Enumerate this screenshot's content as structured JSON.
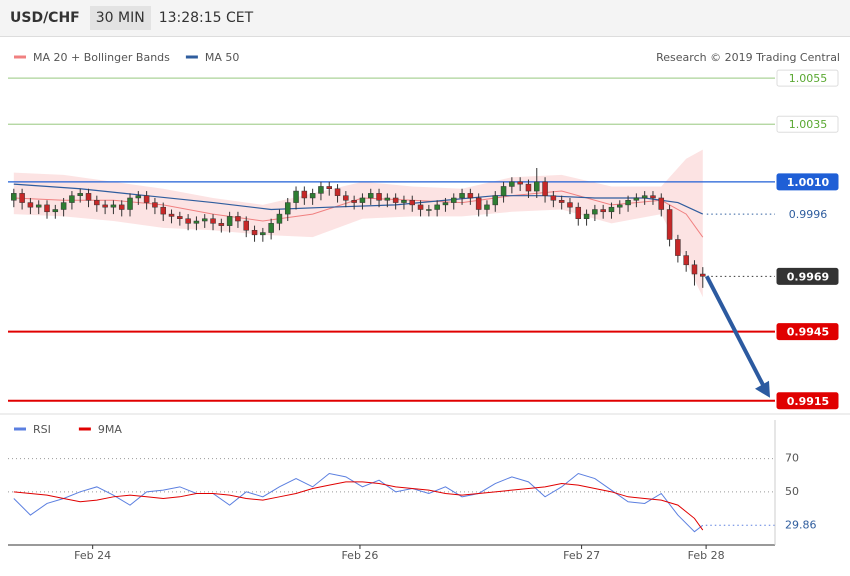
{
  "header": {
    "symbol": "USD/CHF",
    "interval": "30 MIN",
    "time": "13:28:15 CET"
  },
  "chart_data": [
    {
      "type": "candlestick",
      "legend": [
        {
          "name": "MA 20 + Bollinger Bands",
          "color": "#f08080"
        },
        {
          "name": "MA 50",
          "color": "#2f5d9e"
        }
      ],
      "credit": "Research © 2019 Trading Central",
      "xlim": [
        -0.7,
        91.7
      ],
      "ylim": [
        0.9911,
        1.0062
      ],
      "up_color": "#2e7d32",
      "down_color": "#c62828",
      "candles": {
        "open": [
          1.0002,
          1.0005,
          1.0001,
          0.9999,
          1.0,
          0.9997,
          0.9998,
          1.0001,
          1.0004,
          1.0005,
          1.0002,
          1.0,
          0.9999,
          1.0,
          0.9998,
          1.0003,
          1.0004,
          1.0001,
          0.9999,
          0.9996,
          0.9995,
          0.9994,
          0.9992,
          0.9993,
          0.9994,
          0.9992,
          0.9991,
          0.9995,
          0.9993,
          0.9989,
          0.9987,
          0.9988,
          0.9992,
          0.9996,
          1.0001,
          1.0006,
          1.0003,
          1.0005,
          1.0008,
          1.0007,
          1.0004,
          1.0002,
          1.0001,
          1.0003,
          1.0005,
          1.0002,
          1.0003,
          1.0001,
          1.0002,
          1.0,
          0.9998,
          0.9998,
          1.0,
          1.0001,
          1.0003,
          1.0005,
          1.0003,
          0.9998,
          1.0,
          1.0004,
          1.0008,
          1.001,
          1.0009,
          1.0006,
          1.001,
          1.0004,
          1.0002,
          1.0001,
          0.9999,
          0.9994,
          0.9996,
          0.9998,
          0.9997,
          0.9999,
          1.0,
          1.0002,
          1.0003,
          1.0004,
          1.0003,
          0.9998,
          0.9985,
          0.9978,
          0.9974,
          0.997
        ],
        "high": [
          1.0007,
          1.0007,
          1.0003,
          1.0002,
          1.0002,
          1.0,
          1.0003,
          1.0006,
          1.0007,
          1.0007,
          1.0004,
          1.0002,
          1.0002,
          1.0002,
          1.0005,
          1.0006,
          1.0006,
          1.0003,
          1.0001,
          0.9998,
          0.9997,
          0.9996,
          0.9995,
          0.9996,
          0.9996,
          0.9994,
          0.9997,
          0.9997,
          0.9995,
          0.9991,
          0.999,
          0.9994,
          0.9998,
          1.0003,
          1.0008,
          1.0008,
          1.0007,
          1.001,
          1.001,
          1.0009,
          1.0006,
          1.0004,
          1.0005,
          1.0007,
          1.0007,
          1.0005,
          1.0005,
          1.0004,
          1.0004,
          1.0002,
          1.0,
          1.0002,
          1.0003,
          1.0005,
          1.0007,
          1.0007,
          1.0005,
          1.0002,
          1.0006,
          1.001,
          1.0012,
          1.0012,
          1.0011,
          1.0016,
          1.0012,
          1.0006,
          1.0004,
          1.0003,
          1.0001,
          0.9998,
          1.0,
          1.0,
          1.0001,
          1.0002,
          1.0004,
          1.0005,
          1.0006,
          1.0006,
          1.0005,
          1.0,
          0.9987,
          0.998,
          0.9976,
          0.9973
        ],
        "low": [
          0.9999,
          0.9998,
          0.9996,
          0.9996,
          0.9994,
          0.9994,
          0.9995,
          0.9998,
          1.0001,
          0.9999,
          0.9997,
          0.9996,
          0.9996,
          0.9995,
          0.9995,
          1.0,
          0.9998,
          0.9996,
          0.9993,
          0.9992,
          0.9991,
          0.9989,
          0.9989,
          0.999,
          0.9989,
          0.9988,
          0.9988,
          0.999,
          0.9986,
          0.9984,
          0.9984,
          0.9985,
          0.9989,
          0.9993,
          0.9998,
          1.0,
          1.0,
          1.0002,
          1.0004,
          1.0001,
          0.9999,
          0.9998,
          0.9998,
          1.0,
          0.9999,
          0.9999,
          0.9998,
          0.9998,
          0.9997,
          0.9995,
          0.9995,
          0.9995,
          0.9997,
          0.9998,
          1.0,
          1.0,
          0.9995,
          0.9995,
          0.9997,
          1.0001,
          1.0005,
          1.0006,
          1.0003,
          1.0003,
          1.0001,
          0.9999,
          0.9998,
          0.9996,
          0.9991,
          0.9991,
          0.9993,
          0.9994,
          0.9994,
          0.9996,
          0.9997,
          0.9999,
          1.0,
          1.0,
          0.9995,
          0.9982,
          0.9975,
          0.9971,
          0.9965,
          0.9964
        ],
        "close": [
          1.0005,
          1.0001,
          0.9999,
          1.0,
          0.9997,
          0.9998,
          1.0001,
          1.0004,
          1.0005,
          1.0002,
          1.0,
          0.9999,
          1.0,
          0.9998,
          1.0003,
          1.0004,
          1.0001,
          0.9999,
          0.9996,
          0.9995,
          0.9994,
          0.9992,
          0.9993,
          0.9994,
          0.9992,
          0.9991,
          0.9995,
          0.9993,
          0.9989,
          0.9987,
          0.9988,
          0.9992,
          0.9996,
          1.0001,
          1.0006,
          1.0003,
          1.0005,
          1.0008,
          1.0007,
          1.0004,
          1.0002,
          1.0001,
          1.0003,
          1.0005,
          1.0002,
          1.0003,
          1.0001,
          1.0002,
          1.0,
          0.9998,
          0.9998,
          1.0,
          1.0001,
          1.0003,
          1.0005,
          1.0003,
          0.9998,
          1.0,
          1.0004,
          1.0008,
          1.001,
          1.0009,
          1.0006,
          1.001,
          1.0004,
          1.0002,
          1.0001,
          0.9999,
          0.9994,
          0.9996,
          0.9998,
          0.9997,
          0.9999,
          1.0,
          1.0002,
          1.0003,
          1.0004,
          1.0003,
          0.9998,
          0.9985,
          0.9978,
          0.9974,
          0.997,
          0.9969
        ]
      },
      "bands": {
        "x": [
          0,
          6,
          12,
          18,
          24,
          30,
          36,
          42,
          48,
          54,
          60,
          66,
          72,
          78,
          81,
          83
        ],
        "upper": [
          1.0014,
          1.0013,
          1.001,
          1.0007,
          1.0003,
          1.0,
          1.0005,
          1.001,
          1.0008,
          1.0007,
          1.0012,
          1.0013,
          1.0008,
          1.0008,
          1.002,
          1.0024
        ],
        "middle": [
          1.0003,
          1.0002,
          1.0002,
          1.0,
          0.9996,
          0.9993,
          0.9996,
          1.0003,
          1.0002,
          1.0001,
          1.0004,
          1.0006,
          1.0,
          1.0002,
          0.9996,
          0.9986
        ],
        "lower": [
          0.9996,
          0.9995,
          0.9993,
          0.999,
          0.9989,
          0.9987,
          0.9986,
          0.9994,
          0.9995,
          0.9995,
          0.9997,
          0.9998,
          0.9992,
          0.9996,
          0.9975,
          0.996
        ],
        "color": "#f08080"
      },
      "ma50": {
        "x": [
          0,
          8,
          16,
          24,
          31,
          38,
          46,
          52,
          58,
          64,
          70,
          76,
          80,
          83
        ],
        "values": [
          1.0009,
          1.0007,
          1.0004,
          1.0001,
          0.9998,
          0.9999,
          1.0,
          1.0002,
          1.0004,
          1.0004,
          1.0003,
          1.0003,
          1.0001,
          0.9996
        ],
        "color": "#2f5d9e"
      },
      "levels": [
        {
          "value": 1.0055,
          "color": "#5aa832",
          "line": "solid",
          "badge": "outline"
        },
        {
          "value": 1.0035,
          "color": "#5aa832",
          "line": "solid",
          "badge": "outline"
        },
        {
          "value": 1.001,
          "label": "1.0010",
          "color": "#1f5fd6",
          "line": "solid",
          "badge": "fill"
        },
        {
          "value": 0.9996,
          "color": "#2f5d9e",
          "line": "dotted",
          "badge": "text"
        },
        {
          "value": 0.9969,
          "color": "#333333",
          "line": "dotted",
          "badge": "fill"
        },
        {
          "value": 0.9945,
          "color": "#e00000",
          "line": "thick",
          "badge": "fill"
        },
        {
          "value": 0.9915,
          "color": "#e00000",
          "line": "thick",
          "badge": "fill"
        }
      ]
    },
    {
      "type": "line",
      "xlim": [
        -0.7,
        91.7
      ],
      "ylim": [
        18,
        86
      ],
      "yticks": [
        50,
        70
      ],
      "xticks": [
        {
          "value": 9.5,
          "label": "Feb 24"
        },
        {
          "value": 41.7,
          "label": "Feb 26"
        },
        {
          "value": 68.4,
          "label": "Feb 27"
        },
        {
          "value": 83.4,
          "label": "Feb 28"
        }
      ],
      "x": [
        0,
        2,
        4,
        6,
        8,
        10,
        12,
        14,
        16,
        18,
        20,
        22,
        24,
        26,
        28,
        30,
        32,
        34,
        36,
        38,
        40,
        42,
        44,
        46,
        48,
        50,
        52,
        54,
        56,
        58,
        60,
        62,
        64,
        66,
        68,
        70,
        72,
        74,
        76,
        78,
        80,
        82,
        83
      ],
      "series": [
        {
          "name": "RSI",
          "color": "#5b7fe0",
          "values": [
            46,
            36,
            43,
            46,
            50,
            53,
            48,
            42,
            50,
            51,
            53,
            49,
            49,
            42,
            50,
            47,
            53,
            58,
            53,
            61,
            59,
            53,
            57,
            50,
            52,
            49,
            53,
            47,
            49,
            55,
            59,
            56,
            47,
            53,
            61,
            58,
            51,
            44,
            43,
            49,
            36,
            26,
            29.86
          ]
        },
        {
          "name": "9MA",
          "color": "#e00000",
          "values": [
            50,
            49,
            48,
            46,
            44,
            45,
            47,
            48,
            47,
            46,
            47,
            49,
            49,
            48,
            46,
            45,
            47,
            49,
            52,
            54,
            56,
            56,
            55,
            53,
            52,
            51,
            49,
            48,
            49,
            50,
            51,
            52,
            53,
            55,
            54,
            52,
            50,
            47,
            46,
            45,
            42,
            34,
            27
          ]
        }
      ]
    }
  ]
}
